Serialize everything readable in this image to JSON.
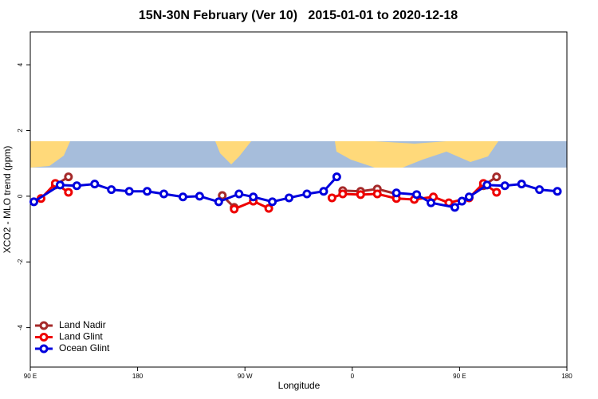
{
  "chart_data": {
    "type": "line",
    "title": "15N-30N February (Ver 10)   2015-01-01 to 2020-12-18",
    "x_label": "Longitude",
    "y_label": "XCO2 - MLO trend (ppm)",
    "xlim": [
      90,
      540
    ],
    "xticks": [
      {
        "value": 90,
        "label": "90 E"
      },
      180,
      {
        "value": 270,
        "label": "90 W"
      },
      {
        "value": 360,
        "label": "0"
      },
      {
        "value": 450,
        "label": "90 E"
      },
      {
        "value": 540,
        "label": "180"
      }
    ],
    "ylim": [
      -5.2,
      5.0
    ],
    "yticks": [
      -4,
      -2,
      0,
      2,
      4
    ],
    "legend": "bottom-left",
    "series": [
      {
        "name": "Land Nadir",
        "color": "#a52a2a",
        "x": [
          111,
          122,
          200,
          251,
          261,
          340,
          352,
          367,
          381,
          397,
          420,
          470,
          481
        ],
        "values": [
          0.34,
          0.59,
          null,
          0.02,
          -0.34,
          null,
          0.17,
          0.15,
          0.22,
          0.07,
          null,
          0.32,
          0.59
        ]
      },
      {
        "name": "Land Glint",
        "color": "#ee0000",
        "x": [
          99,
          111,
          122,
          200,
          261,
          277,
          290,
          320,
          343,
          352,
          367,
          381,
          397,
          412,
          428,
          441,
          458,
          470,
          481
        ],
        "values": [
          -0.07,
          0.39,
          0.12,
          null,
          -0.39,
          -0.15,
          -0.37,
          null,
          -0.05,
          0.07,
          0.05,
          0.07,
          -0.07,
          -0.1,
          -0.02,
          -0.2,
          -0.05,
          0.39,
          0.12
        ]
      },
      {
        "name": "Ocean Glint",
        "color": "#0000dd",
        "x": [
          93,
          115,
          129,
          144,
          158,
          173,
          188,
          202,
          218,
          232,
          248,
          265,
          277,
          293,
          307,
          322,
          336,
          347,
          372,
          397,
          414,
          426,
          446,
          452,
          458,
          473,
          488,
          502,
          517,
          532
        ],
        "values": [
          -0.17,
          0.34,
          0.32,
          0.37,
          0.2,
          0.15,
          0.15,
          0.07,
          -0.02,
          0,
          -0.17,
          0.07,
          -0.02,
          -0.17,
          -0.05,
          0.07,
          0.15,
          0.59,
          null,
          0.1,
          0.05,
          -0.2,
          -0.34,
          -0.15,
          -0.02,
          0.34,
          0.32,
          0.37,
          0.2,
          0.15
        ]
      }
    ]
  }
}
